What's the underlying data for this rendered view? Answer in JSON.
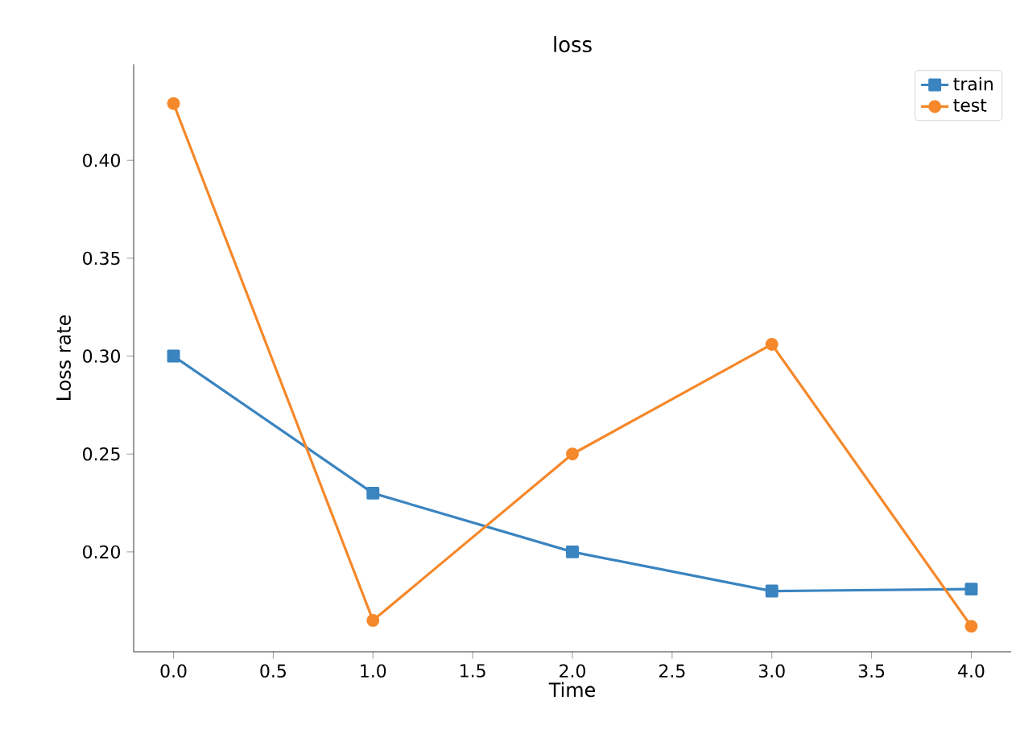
{
  "chart_data": {
    "type": "line",
    "title": "loss",
    "xlabel": "Time",
    "ylabel": "Loss rate",
    "x": [
      0,
      1,
      2,
      3,
      4
    ],
    "series": [
      {
        "name": "train",
        "color": "#3a84c0",
        "marker": "square",
        "values": [
          0.3,
          0.23,
          0.2,
          0.18,
          0.181
        ]
      },
      {
        "name": "test",
        "color": "#f5882a",
        "marker": "circle",
        "values": [
          0.429,
          0.165,
          0.25,
          0.306,
          0.162
        ]
      }
    ],
    "xlim": [
      -0.2,
      4.2
    ],
    "ylim": [
      0.149,
      0.449
    ],
    "xticks": [
      {
        "value": 0,
        "label": "0.0"
      },
      {
        "value": 0.5,
        "label": "0.5"
      },
      {
        "value": 1,
        "label": "1.0"
      },
      {
        "value": 1.5,
        "label": "1.5"
      },
      {
        "value": 2,
        "label": "2.0"
      },
      {
        "value": 2.5,
        "label": "2.5"
      },
      {
        "value": 3,
        "label": "3.0"
      },
      {
        "value": 3.5,
        "label": "3.5"
      },
      {
        "value": 4,
        "label": "4.0"
      }
    ],
    "yticks": [
      {
        "value": 0.2,
        "label": "0.20"
      },
      {
        "value": 0.25,
        "label": "0.25"
      },
      {
        "value": 0.3,
        "label": "0.30"
      },
      {
        "value": 0.35,
        "label": "0.35"
      },
      {
        "value": 0.4,
        "label": "0.40"
      }
    ],
    "grid": false,
    "legend": "top right",
    "line_style": "solid"
  }
}
